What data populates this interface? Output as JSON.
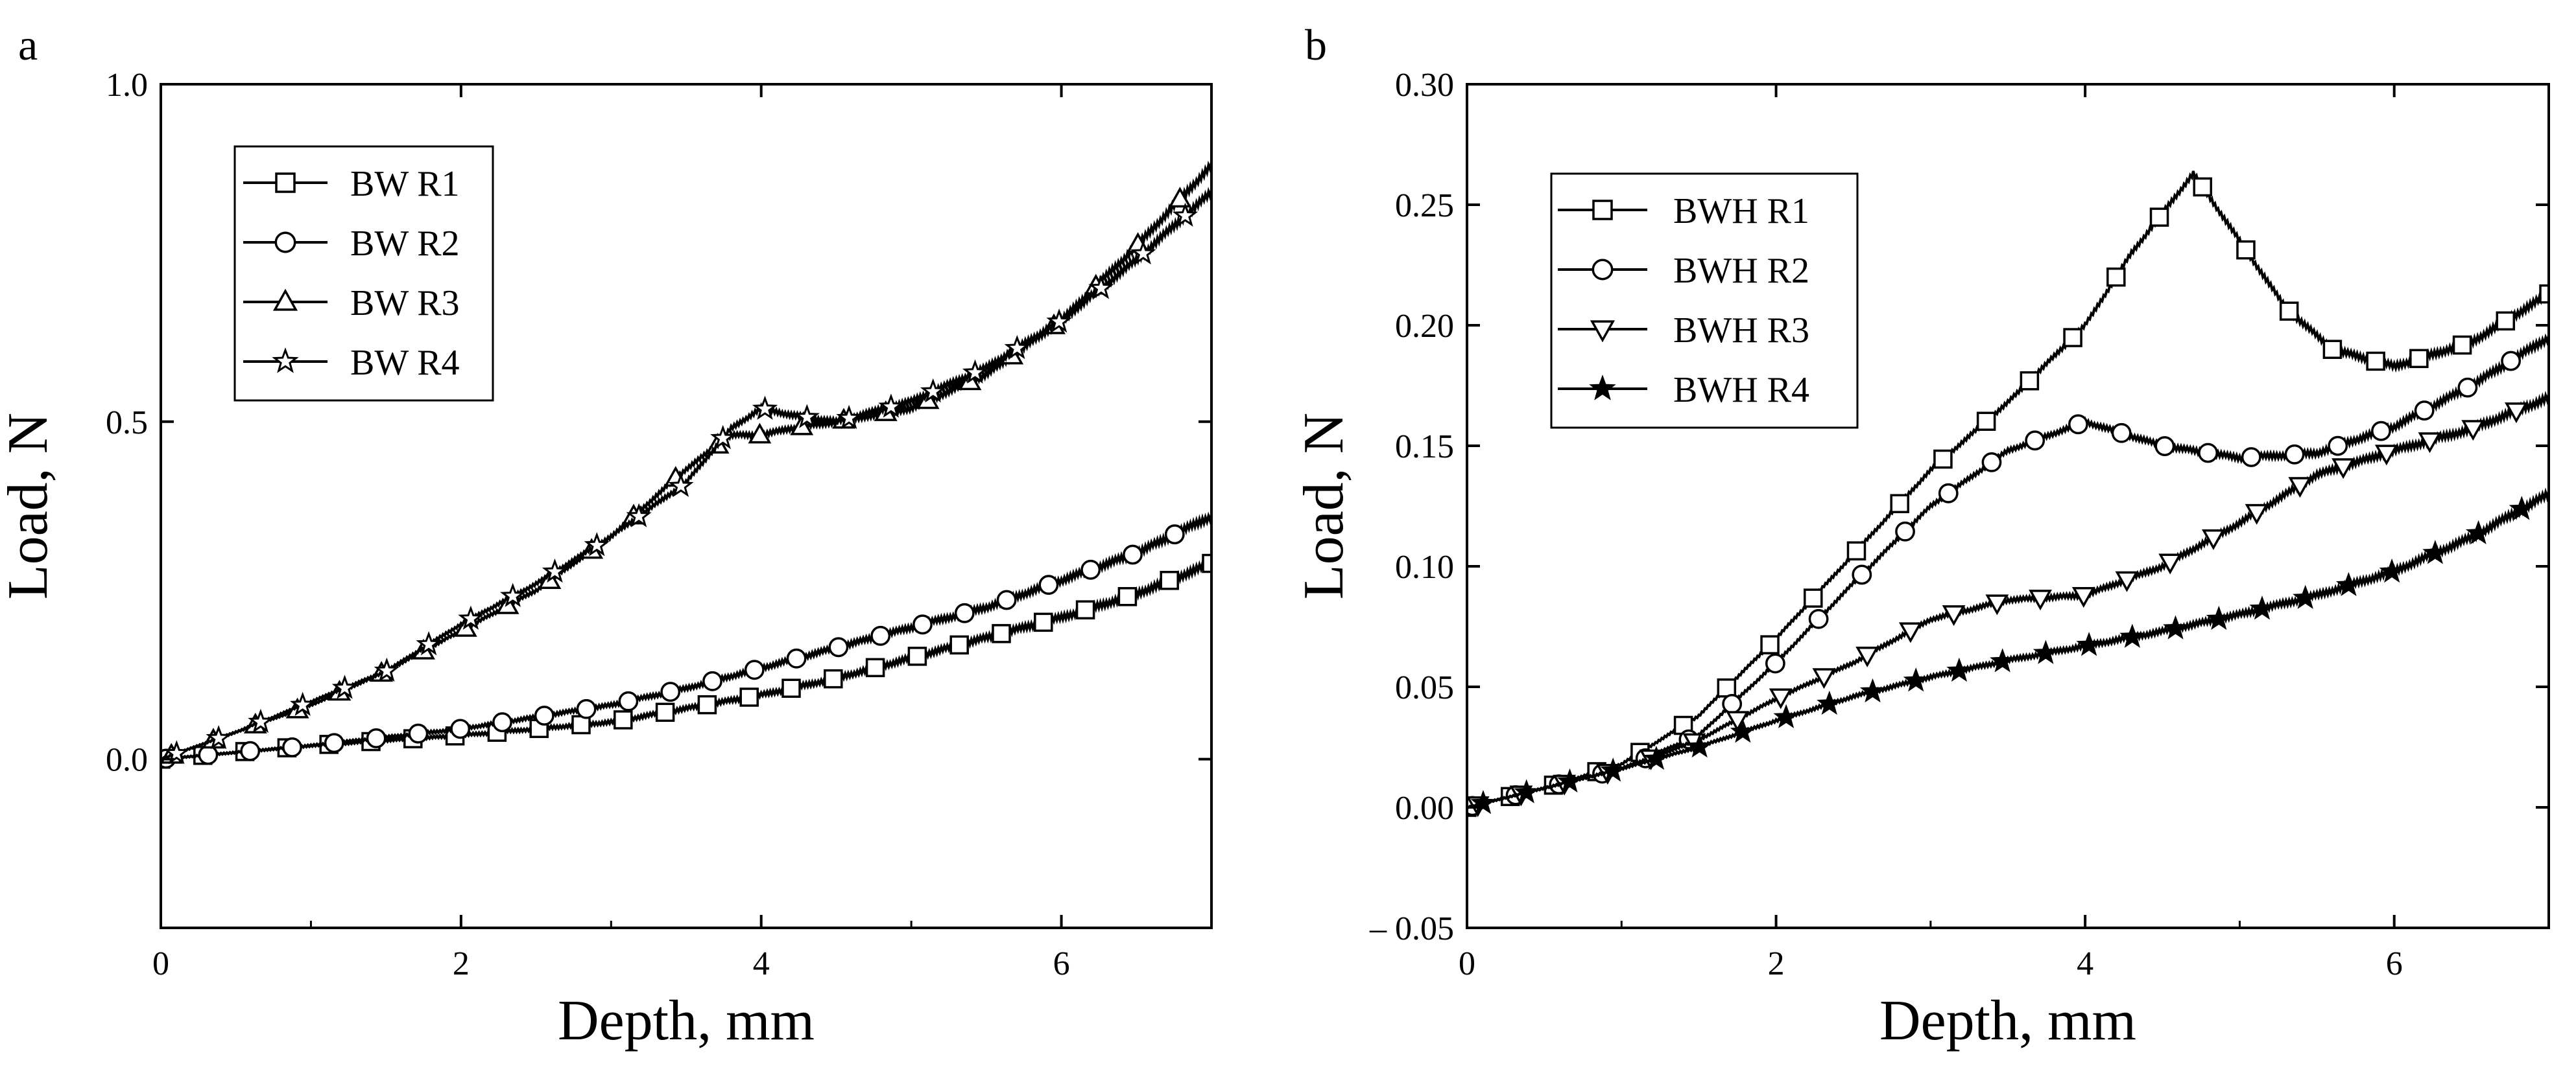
{
  "chart_data": [
    {
      "panel_label": "a",
      "type": "line",
      "xlabel": "Depth, mm",
      "ylabel": "Load, N",
      "xlim": [
        0,
        7
      ],
      "ylim": [
        -0.25,
        1.0
      ],
      "xticks": [
        0,
        2,
        4,
        6
      ],
      "yticks": [
        0.0,
        0.5,
        1.0
      ],
      "xtick_labels": [
        "0",
        "2",
        "4",
        "6"
      ],
      "ytick_labels": [
        "0.0",
        "0.5",
        "1.0"
      ],
      "legend_position": "top-left",
      "series": [
        {
          "name": "BW R1",
          "marker": "square",
          "marker_fill": "open",
          "x": [
            0,
            1,
            2,
            3,
            3.5,
            4,
            4.5,
            5,
            5.5,
            6,
            6.5,
            7
          ],
          "y": [
            0.0,
            0.02,
            0.035,
            0.055,
            0.075,
            0.095,
            0.12,
            0.15,
            0.18,
            0.21,
            0.245,
            0.29
          ]
        },
        {
          "name": "BW R2",
          "marker": "circle",
          "marker_fill": "open",
          "x": [
            0,
            1,
            2,
            3,
            3.5,
            4,
            4.5,
            5,
            5.5,
            6,
            6.5,
            7
          ],
          "y": [
            0.0,
            0.02,
            0.045,
            0.08,
            0.105,
            0.135,
            0.165,
            0.195,
            0.225,
            0.265,
            0.305,
            0.36
          ]
        },
        {
          "name": "BW R3",
          "marker": "triangle-up",
          "marker_fill": "open",
          "x": [
            0,
            0.5,
            1,
            1.5,
            2,
            2.5,
            3,
            3.5,
            3.8,
            4,
            4.2,
            4.5,
            5,
            5.5,
            6,
            6.5,
            7
          ],
          "y": [
            0.0,
            0.04,
            0.08,
            0.13,
            0.19,
            0.25,
            0.33,
            0.43,
            0.48,
            0.48,
            0.49,
            0.5,
            0.52,
            0.57,
            0.65,
            0.76,
            0.88
          ]
        },
        {
          "name": "BW R4",
          "marker": "star",
          "marker_fill": "open",
          "x": [
            0,
            0.5,
            1,
            1.5,
            2,
            2.5,
            3,
            3.5,
            3.8,
            4,
            4.2,
            4.5,
            5,
            5.5,
            6,
            6.5,
            7
          ],
          "y": [
            0.0,
            0.04,
            0.085,
            0.13,
            0.2,
            0.26,
            0.33,
            0.41,
            0.49,
            0.52,
            0.51,
            0.5,
            0.53,
            0.58,
            0.65,
            0.74,
            0.84
          ]
        }
      ]
    },
    {
      "panel_label": "b",
      "type": "line",
      "xlabel": "Depth, mm",
      "ylabel": "Load, N",
      "xlim": [
        0,
        7
      ],
      "ylim": [
        -0.05,
        0.3
      ],
      "xticks": [
        0,
        2,
        4,
        6
      ],
      "yticks": [
        -0.05,
        0.0,
        0.05,
        0.1,
        0.15,
        0.2,
        0.25,
        0.3
      ],
      "xtick_labels": [
        "0",
        "2",
        "4",
        "6"
      ],
      "ytick_labels": [
        "– 0.05",
        "0.00",
        "0.05",
        "0.10",
        "0.15",
        "0.20",
        "0.25",
        "0.30"
      ],
      "legend_position": "top-left",
      "series": [
        {
          "name": "BWH R1",
          "marker": "square",
          "marker_fill": "open",
          "x": [
            0,
            0.5,
            1,
            1.5,
            2,
            2.5,
            3,
            3.5,
            4,
            4.3,
            4.7,
            5,
            5.3,
            5.6,
            6,
            6.5,
            7
          ],
          "y": [
            0.0,
            0.008,
            0.018,
            0.038,
            0.07,
            0.105,
            0.14,
            0.168,
            0.2,
            0.23,
            0.263,
            0.235,
            0.207,
            0.19,
            0.183,
            0.193,
            0.213
          ]
        },
        {
          "name": "BWH R2",
          "marker": "circle",
          "marker_fill": "open",
          "x": [
            0,
            0.5,
            1,
            1.5,
            2,
            2.5,
            3,
            3.5,
            4,
            4.5,
            5,
            5.5,
            6,
            6.5,
            7
          ],
          "y": [
            0.0,
            0.008,
            0.016,
            0.03,
            0.06,
            0.093,
            0.125,
            0.148,
            0.16,
            0.15,
            0.145,
            0.147,
            0.158,
            0.175,
            0.195
          ]
        },
        {
          "name": "BWH R3",
          "marker": "triangle-down",
          "marker_fill": "open",
          "x": [
            0,
            0.5,
            1,
            1.5,
            2,
            2.5,
            3,
            3.5,
            4,
            4.5,
            5,
            5.5,
            6,
            6.5,
            7
          ],
          "y": [
            0.0,
            0.008,
            0.016,
            0.028,
            0.045,
            0.06,
            0.078,
            0.086,
            0.088,
            0.1,
            0.118,
            0.138,
            0.148,
            0.157,
            0.17
          ]
        },
        {
          "name": "BWH R4",
          "marker": "star",
          "marker_fill": "filled",
          "x": [
            0,
            0.5,
            1,
            1.5,
            2,
            2.5,
            3,
            3.5,
            4,
            4.5,
            5,
            5.5,
            6,
            6.5,
            7
          ],
          "y": [
            0.0,
            0.008,
            0.016,
            0.025,
            0.036,
            0.046,
            0.054,
            0.061,
            0.067,
            0.073,
            0.08,
            0.088,
            0.098,
            0.112,
            0.13
          ]
        }
      ]
    }
  ]
}
